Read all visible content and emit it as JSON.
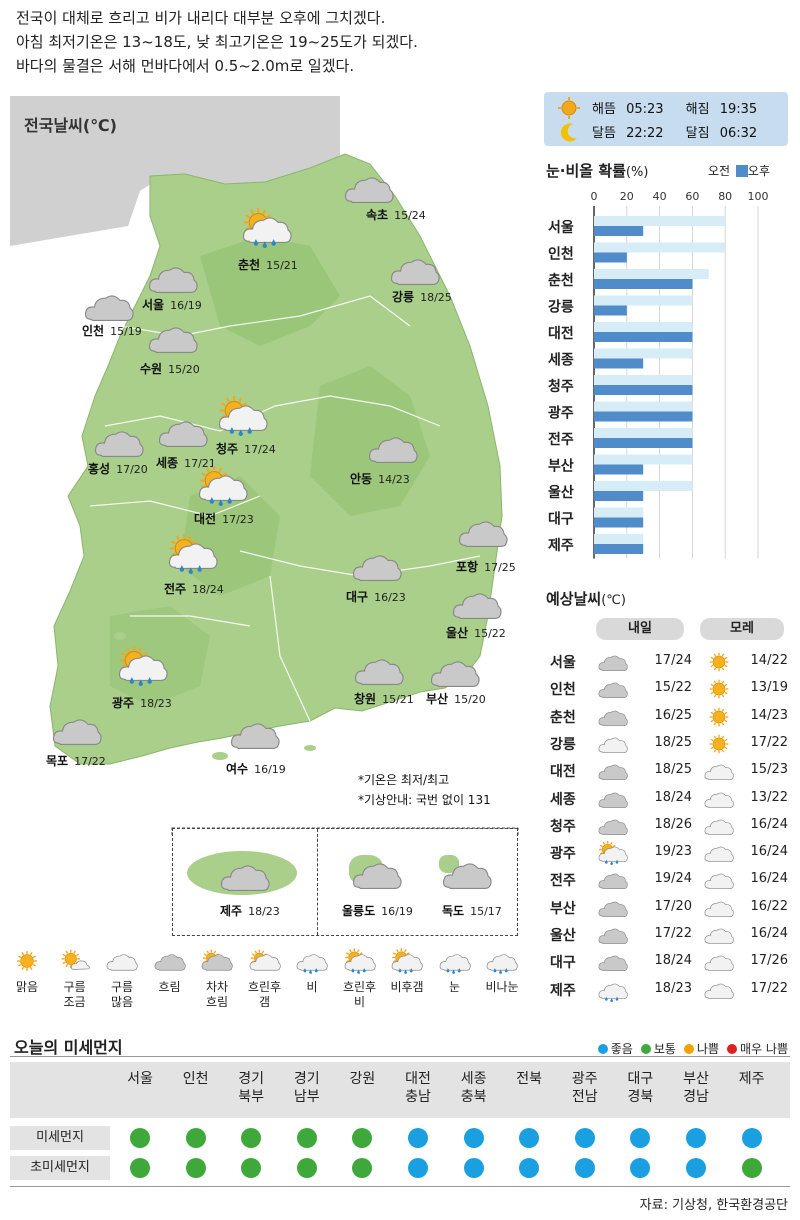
{
  "summary": {
    "line1": "전국이 대체로 흐리고 비가 내리다 대부분 오후에 그치겠다.",
    "line2": "아침 최저기온은 13~18도, 낮 최고기온은 19~25도가 되겠다.",
    "line3": "바다의 물결은 서해 먼바다에서 0.5~2.0m로 일겠다."
  },
  "map": {
    "title": "전국날씨(℃)",
    "cities": [
      {
        "name": "속초",
        "temp": "15/24",
        "icon": "cloudy-icon"
      },
      {
        "name": "춘천",
        "temp": "15/21",
        "icon": "cloudy-rain-sun-icon"
      },
      {
        "name": "강릉",
        "temp": "18/25",
        "icon": "cloudy-icon"
      },
      {
        "name": "서울",
        "temp": "16/19",
        "icon": "cloudy-icon"
      },
      {
        "name": "인천",
        "temp": "15/19",
        "icon": "cloudy-icon"
      },
      {
        "name": "수원",
        "temp": "15/20",
        "icon": "cloudy-icon"
      },
      {
        "name": "청주",
        "temp": "17/24",
        "icon": "cloudy-rain-sun-icon"
      },
      {
        "name": "홍성",
        "temp": "17/20",
        "icon": "cloudy-icon"
      },
      {
        "name": "세종",
        "temp": "17/21",
        "icon": "cloudy-icon"
      },
      {
        "name": "안동",
        "temp": "14/23",
        "icon": "cloudy-icon"
      },
      {
        "name": "대전",
        "temp": "17/23",
        "icon": "cloudy-rain-sun-icon"
      },
      {
        "name": "포항",
        "temp": "17/25",
        "icon": "cloudy-icon"
      },
      {
        "name": "전주",
        "temp": "18/24",
        "icon": "cloudy-rain-sun-icon"
      },
      {
        "name": "대구",
        "temp": "16/23",
        "icon": "cloudy-icon"
      },
      {
        "name": "울산",
        "temp": "15/22",
        "icon": "cloudy-icon"
      },
      {
        "name": "광주",
        "temp": "18/23",
        "icon": "cloudy-rain-sun-icon"
      },
      {
        "name": "창원",
        "temp": "15/21",
        "icon": "cloudy-icon"
      },
      {
        "name": "부산",
        "temp": "15/20",
        "icon": "cloudy-icon"
      },
      {
        "name": "목포",
        "temp": "17/22",
        "icon": "cloudy-icon"
      },
      {
        "name": "여수",
        "temp": "16/19",
        "icon": "cloudy-icon"
      },
      {
        "name": "제주",
        "temp": "18/23",
        "icon": "cloudy-icon"
      },
      {
        "name": "울릉도",
        "temp": "16/19",
        "icon": "cloudy-icon"
      },
      {
        "name": "독도",
        "temp": "15/17",
        "icon": "cloudy-icon"
      }
    ],
    "note1": "*기온은 최저/최고",
    "note2": "*기상안내: 국번 없이 131"
  },
  "sun": {
    "sunrise_label": "해뜸",
    "sunrise": "05:23",
    "sunset_label": "해짐",
    "sunset": "19:35",
    "moonrise_label": "달뜸",
    "moonrise": "22:22",
    "moonset_label": "달짐",
    "moonset": "06:32"
  },
  "precip": {
    "title": "눈·비올 확률",
    "unit": "(%)",
    "legend_am": "오전",
    "legend_pm": "오후",
    "colors": {
      "am": "#d6ecf6",
      "pm": "#4f8cc9"
    }
  },
  "chart_data": {
    "type": "bar",
    "title": "눈·비올 확률(%)",
    "xlim": [
      0,
      100
    ],
    "ticks": [
      "0",
      "20",
      "40",
      "60",
      "80",
      "100"
    ],
    "categories": [
      "서울",
      "인천",
      "춘천",
      "강릉",
      "대전",
      "세종",
      "청주",
      "광주",
      "전주",
      "부산",
      "울산",
      "대구",
      "제주"
    ],
    "series": [
      {
        "name": "오전",
        "values": [
          80,
          80,
          70,
          60,
          60,
          60,
          60,
          60,
          60,
          60,
          60,
          30,
          30
        ]
      },
      {
        "name": "오후",
        "values": [
          30,
          20,
          60,
          20,
          60,
          30,
          60,
          60,
          60,
          30,
          30,
          30,
          30
        ]
      }
    ]
  },
  "forecast": {
    "title": "예상날씨",
    "unit": "(℃)",
    "tomorrow": "내일",
    "dayafter": "모레",
    "rows": [
      {
        "city": "서울",
        "t1": "17/24",
        "i1": "cloudy-icon",
        "t2": "14/22",
        "i2": "sunny-icon"
      },
      {
        "city": "인천",
        "t1": "15/22",
        "i1": "cloudy-icon",
        "t2": "13/19",
        "i2": "sunny-icon"
      },
      {
        "city": "춘천",
        "t1": "16/25",
        "i1": "cloudy-icon",
        "t2": "14/23",
        "i2": "sunny-icon"
      },
      {
        "city": "강릉",
        "t1": "18/25",
        "i1": "mostly-cloudy-icon",
        "t2": "17/22",
        "i2": "sunny-icon"
      },
      {
        "city": "대전",
        "t1": "18/25",
        "i1": "cloudy-icon",
        "t2": "15/23",
        "i2": "mostly-cloudy-icon"
      },
      {
        "city": "세종",
        "t1": "18/24",
        "i1": "cloudy-icon",
        "t2": "13/22",
        "i2": "mostly-cloudy-icon"
      },
      {
        "city": "청주",
        "t1": "18/26",
        "i1": "cloudy-icon",
        "t2": "16/24",
        "i2": "mostly-cloudy-icon"
      },
      {
        "city": "광주",
        "t1": "19/23",
        "i1": "cloudy-rain-sun-icon",
        "t2": "16/24",
        "i2": "mostly-cloudy-icon"
      },
      {
        "city": "전주",
        "t1": "19/24",
        "i1": "cloudy-icon",
        "t2": "16/24",
        "i2": "mostly-cloudy-icon"
      },
      {
        "city": "부산",
        "t1": "17/20",
        "i1": "cloudy-icon",
        "t2": "16/22",
        "i2": "mostly-cloudy-icon"
      },
      {
        "city": "울산",
        "t1": "17/22",
        "i1": "cloudy-icon",
        "t2": "16/24",
        "i2": "mostly-cloudy-icon"
      },
      {
        "city": "대구",
        "t1": "18/24",
        "i1": "cloudy-icon",
        "t2": "17/26",
        "i2": "mostly-cloudy-icon"
      },
      {
        "city": "제주",
        "t1": "18/23",
        "i1": "rain-icon",
        "t2": "17/22",
        "i2": "mostly-cloudy-icon"
      }
    ]
  },
  "icon_legend": [
    {
      "label": "맑음",
      "icon": "sunny-icon"
    },
    {
      "label": "구름 조금",
      "icon": "partly-cloudy-icon"
    },
    {
      "label": "구름 많음",
      "icon": "mostly-cloudy-icon"
    },
    {
      "label": "흐림",
      "icon": "cloudy-icon"
    },
    {
      "label": "차차 흐림",
      "icon": "gradually-cloudy-icon"
    },
    {
      "label": "흐린후 갬",
      "icon": "cloudy-then-clear-icon"
    },
    {
      "label": "비",
      "icon": "rain-icon"
    },
    {
      "label": "흐린후 비",
      "icon": "cloudy-then-rain-icon"
    },
    {
      "label": "비후갬",
      "icon": "rain-then-clear-icon"
    },
    {
      "label": "눈",
      "icon": "snow-icon"
    },
    {
      "label": "비나눈",
      "icon": "rain-or-snow-icon"
    }
  ],
  "dust": {
    "title": "오늘의 미세먼지",
    "legend": [
      {
        "label": "좋음",
        "color": "#1aa0e0"
      },
      {
        "label": "보통",
        "color": "#3fa83a"
      },
      {
        "label": "나쁨",
        "color": "#f2a100"
      },
      {
        "label": "매우 나쁨",
        "color": "#e02020"
      }
    ],
    "regions": [
      "서울",
      "인천",
      "경기 북부",
      "경기 남부",
      "강원",
      "대전 충남",
      "세종 충북",
      "전북",
      "광주 전남",
      "대구 경북",
      "부산 경남",
      "제주"
    ],
    "pm10_label": "미세먼지",
    "pm25_label": "초미세먼지",
    "pm10": [
      "보통",
      "보통",
      "보통",
      "보통",
      "보통",
      "좋음",
      "좋음",
      "좋음",
      "좋음",
      "좋음",
      "좋음",
      "좋음"
    ],
    "pm25": [
      "보통",
      "보통",
      "보통",
      "보통",
      "보통",
      "좋음",
      "좋음",
      "좋음",
      "좋음",
      "좋음",
      "좋음",
      "보통"
    ]
  },
  "source": "자료: 기상청, 한국환경공단"
}
